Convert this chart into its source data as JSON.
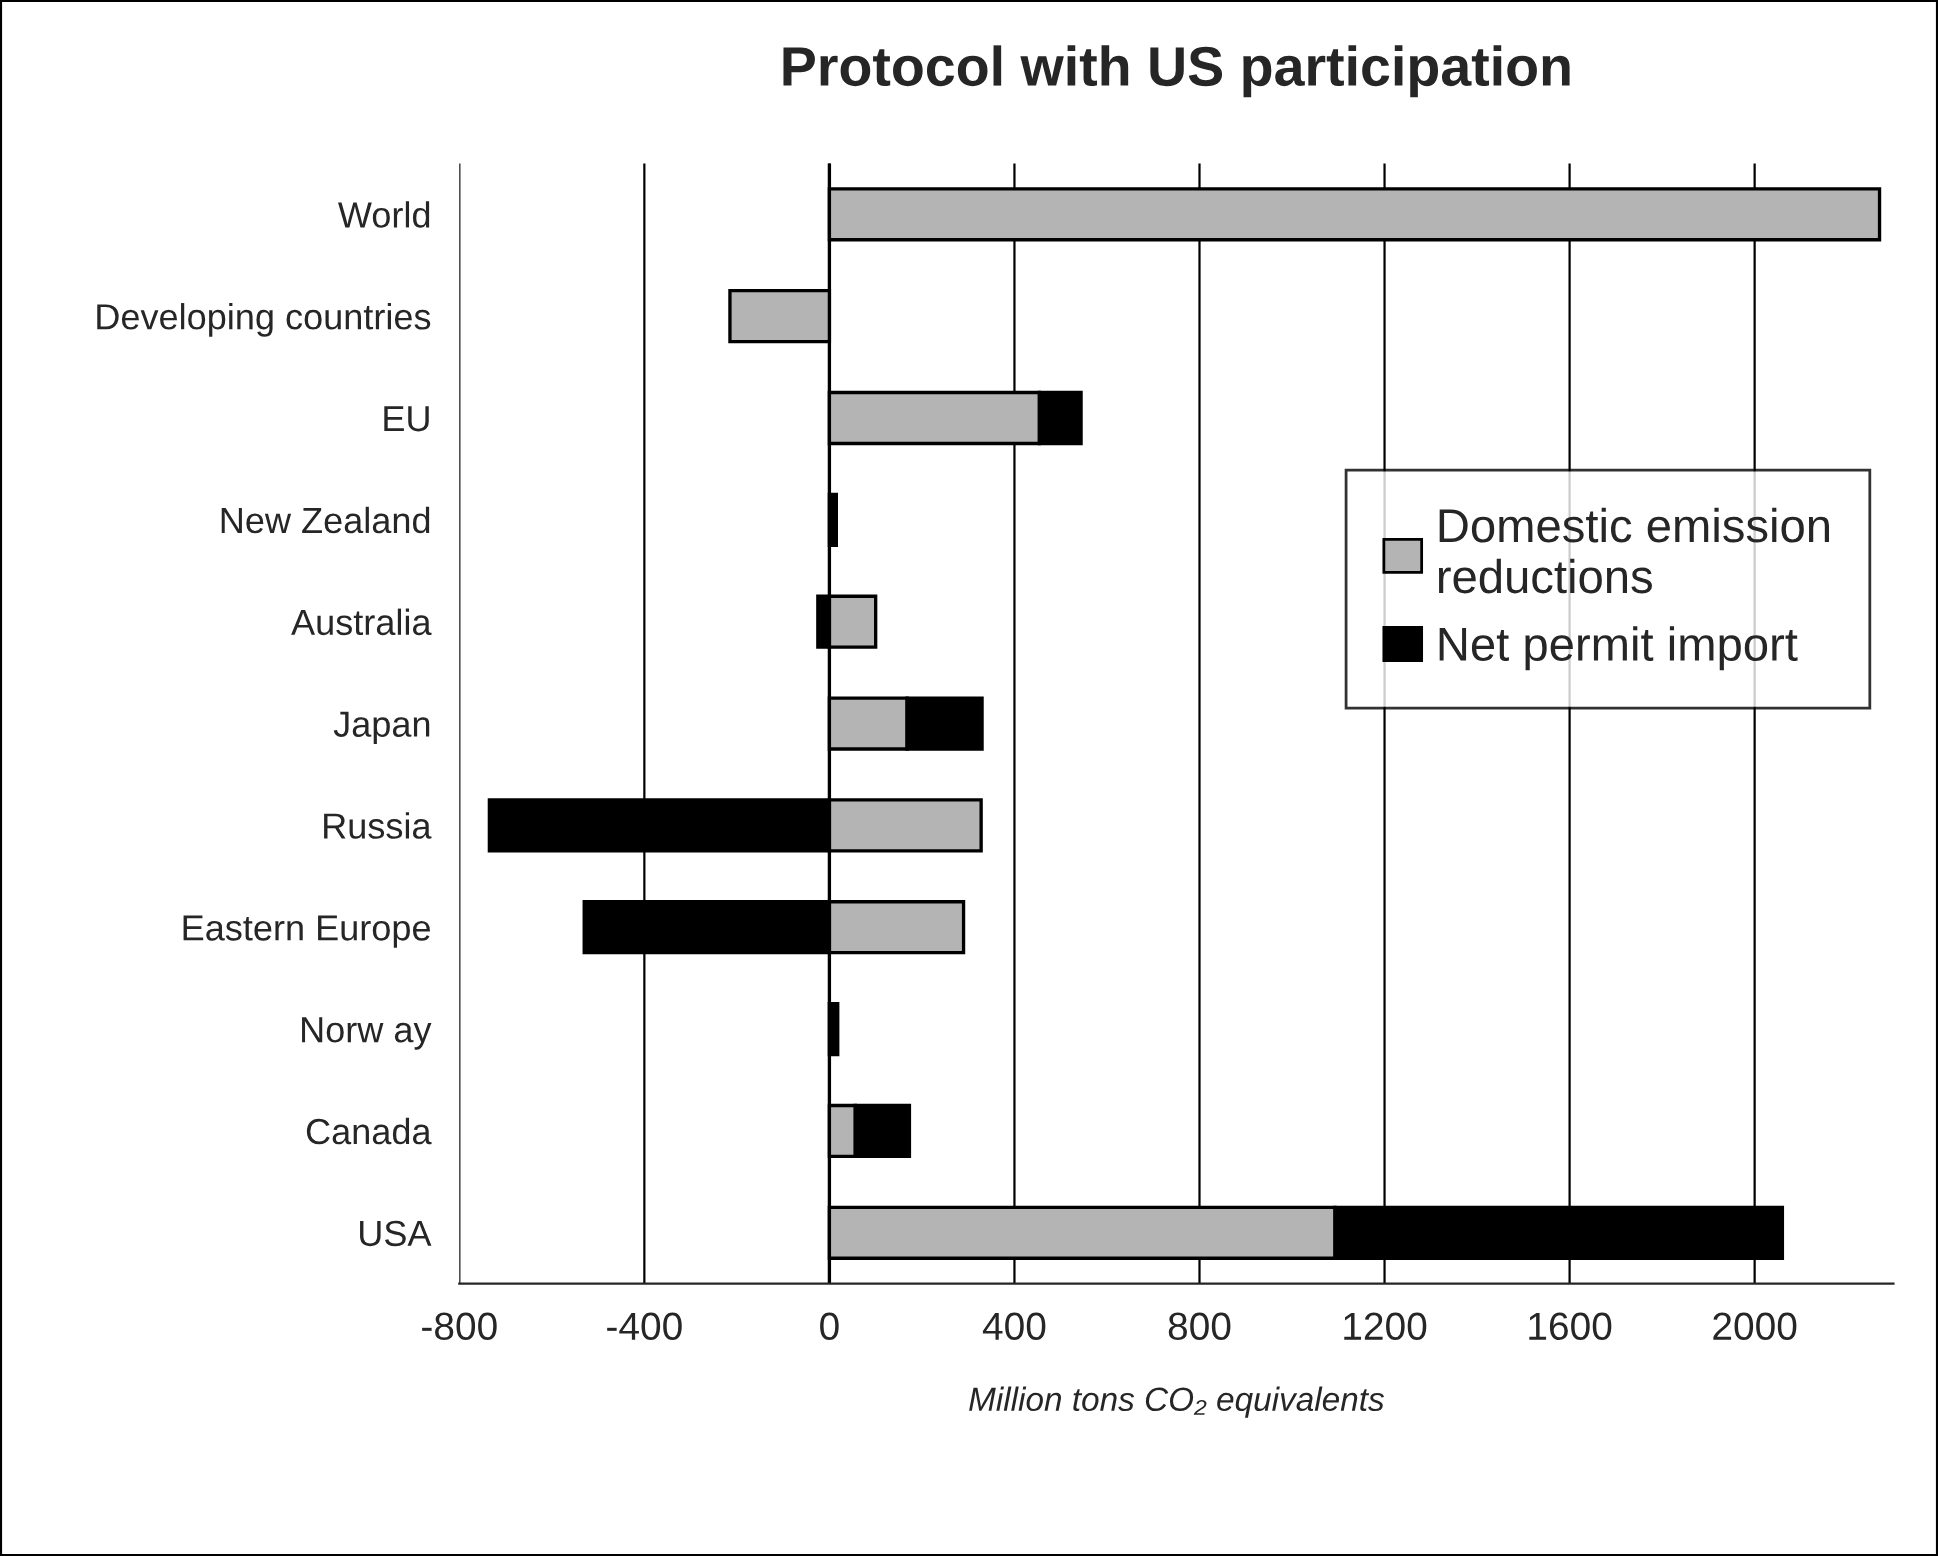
{
  "chart_data": {
    "type": "bar",
    "orientation": "horizontal",
    "stacked": true,
    "title": "Protocol with US participation",
    "xlabel": "Million tons CO₂ equivalents",
    "categories": [
      "World",
      "Developing countries",
      "EU",
      "New Zealand",
      "Australia",
      "Japan",
      "Russia",
      "Eastern Europe",
      "Norw ay",
      "Canada",
      "USA"
    ],
    "series": [
      {
        "name": "Domestic emission reductions",
        "color": "#b4b4b4",
        "values": [
          2270,
          -215,
          454,
          0,
          100,
          168,
          328,
          290,
          0,
          56,
          1093
        ]
      },
      {
        "name": "Net permit import",
        "color": "#000000",
        "values": [
          0,
          0,
          90,
          15,
          -25,
          162,
          -735,
          -530,
          18,
          117,
          967
        ]
      }
    ],
    "xlim": [
      -800,
      2300
    ],
    "xticks": [
      -800,
      -400,
      0,
      400,
      800,
      1200,
      1600,
      2000
    ],
    "grid": "x",
    "legend": "right"
  }
}
